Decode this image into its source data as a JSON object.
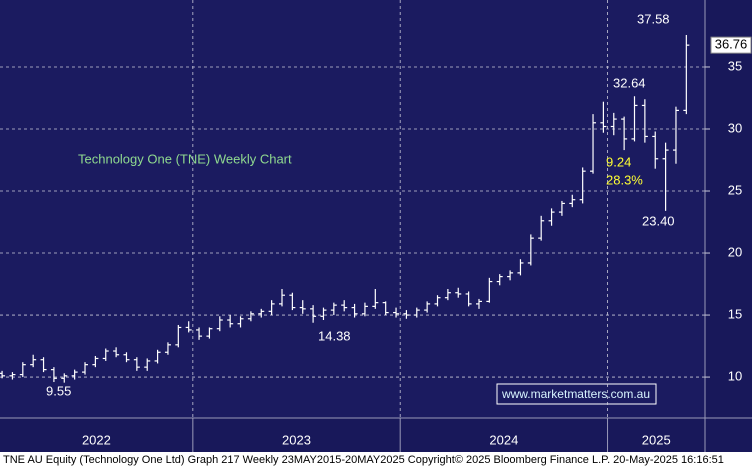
{
  "chart_data": {
    "type": "ohlc",
    "title": "Technology One (TNE) Weekly Chart",
    "title_color": "#8fd98f",
    "color": "#ffffff",
    "grid": true,
    "x": [
      2022.08,
      2022.13,
      2022.18,
      2022.23,
      2022.28,
      2022.33,
      2022.38,
      2022.43,
      2022.48,
      2022.53,
      2022.58,
      2022.63,
      2022.68,
      2022.73,
      2022.78,
      2022.83,
      2022.88,
      2022.93,
      2022.98,
      2023.03,
      2023.08,
      2023.13,
      2023.18,
      2023.23,
      2023.28,
      2023.33,
      2023.38,
      2023.43,
      2023.48,
      2023.53,
      2023.58,
      2023.63,
      2023.68,
      2023.73,
      2023.78,
      2023.83,
      2023.88,
      2023.93,
      2023.98,
      2024.03,
      2024.08,
      2024.13,
      2024.18,
      2024.23,
      2024.28,
      2024.33,
      2024.38,
      2024.43,
      2024.48,
      2024.53,
      2024.58,
      2024.63,
      2024.68,
      2024.73,
      2024.78,
      2024.83,
      2024.88,
      2024.93,
      2024.98,
      2025.03,
      2025.08,
      2025.13,
      2025.18,
      2025.23,
      2025.28,
      2025.33,
      2025.38
    ],
    "open": [
      10.3,
      10.1,
      10.2,
      11.0,
      11.4,
      10.6,
      9.9,
      10.1,
      10.4,
      11.0,
      11.5,
      12.1,
      11.8,
      11.4,
      10.8,
      11.3,
      12.0,
      12.6,
      14.0,
      13.8,
      13.3,
      13.9,
      14.6,
      14.3,
      14.7,
      15.1,
      15.3,
      15.9,
      16.6,
      15.6,
      15.5,
      14.9,
      15.4,
      15.8,
      15.6,
      15.1,
      15.7,
      16.0,
      15.2,
      15.1,
      15.0,
      15.4,
      15.9,
      16.4,
      16.8,
      16.7,
      15.9,
      16.1,
      17.7,
      18.1,
      18.4,
      19.2,
      21.2,
      22.6,
      23.3,
      24.0,
      24.3,
      26.6,
      30.5,
      30.2,
      30.8,
      29.2,
      31.9,
      29.4,
      27.6,
      28.3,
      31.5
    ],
    "high": [
      10.5,
      10.4,
      11.2,
      11.8,
      11.6,
      10.8,
      10.3,
      10.6,
      11.2,
      11.7,
      12.3,
      12.4,
      12.0,
      11.6,
      11.5,
      12.2,
      12.8,
      14.2,
      14.5,
      14.0,
      14.0,
      14.9,
      15.0,
      14.9,
      15.3,
      15.5,
      16.2,
      17.1,
      16.8,
      16.2,
      15.8,
      15.6,
      16.0,
      16.2,
      15.9,
      16.0,
      17.1,
      16.1,
      15.6,
      15.4,
      15.6,
      16.1,
      16.6,
      17.1,
      17.2,
      16.9,
      16.3,
      18.0,
      18.3,
      18.6,
      19.5,
      21.5,
      23.0,
      23.6,
      24.2,
      24.7,
      26.9,
      31.2,
      32.2,
      31.3,
      31.0,
      32.64,
      32.4,
      29.8,
      28.9,
      31.8,
      37.58
    ],
    "low": [
      9.9,
      9.8,
      10.0,
      10.8,
      10.4,
      9.6,
      9.55,
      9.8,
      10.2,
      10.8,
      11.3,
      11.6,
      11.2,
      10.5,
      10.5,
      11.1,
      11.8,
      12.4,
      13.6,
      13.0,
      13.1,
      13.7,
      14.0,
      14.0,
      14.5,
      14.8,
      15.0,
      15.7,
      15.4,
      15.1,
      14.38,
      14.6,
      15.0,
      15.3,
      14.8,
      14.9,
      15.5,
      15.0,
      14.8,
      14.7,
      14.8,
      15.2,
      15.7,
      16.2,
      16.4,
      15.7,
      15.5,
      16.0,
      17.4,
      17.8,
      18.2,
      19.0,
      21.0,
      22.2,
      23.0,
      23.7,
      24.0,
      26.4,
      29.7,
      29.5,
      28.3,
      29.0,
      28.9,
      26.8,
      23.4,
      27.2,
      31.2
    ],
    "close": [
      10.1,
      10.2,
      11.0,
      11.4,
      10.6,
      9.9,
      10.1,
      10.4,
      11.0,
      11.5,
      12.1,
      11.8,
      11.4,
      10.8,
      11.3,
      12.0,
      12.6,
      14.0,
      13.8,
      13.3,
      13.9,
      14.6,
      14.3,
      14.7,
      15.1,
      15.3,
      15.9,
      16.6,
      15.6,
      15.5,
      14.9,
      15.4,
      15.8,
      15.6,
      15.1,
      15.7,
      16.0,
      15.2,
      15.1,
      15.0,
      15.4,
      15.9,
      16.4,
      16.8,
      16.7,
      15.9,
      16.1,
      17.7,
      18.1,
      18.4,
      19.2,
      21.2,
      22.6,
      23.3,
      24.0,
      24.3,
      26.6,
      30.5,
      30.2,
      30.8,
      29.2,
      31.9,
      29.4,
      27.6,
      28.3,
      31.5,
      36.76
    ],
    "xlim": [
      2022.07,
      2025.47
    ],
    "xticks": [
      2023,
      2024,
      2025
    ],
    "year_labels": [
      2022,
      2023,
      2024,
      2025
    ],
    "ylim": [
      6.7,
      40.4
    ],
    "yticks": [
      10,
      15,
      20,
      25,
      30,
      35
    ],
    "annotations": [
      {
        "text": "37.58",
        "color": "#ffffff"
      },
      {
        "text": "32.64",
        "color": "#ffffff"
      },
      {
        "text": "9.24",
        "color": "#ffff33"
      },
      {
        "text": "28.3%",
        "color": "#ffff33"
      },
      {
        "text": "23.40",
        "color": "#ffffff"
      },
      {
        "text": "14.38",
        "color": "#ffffff"
      },
      {
        "text": "9.55",
        "color": "#ffffff"
      }
    ],
    "watermark": "www.marketmatters.com.au",
    "footer": "TNE AU Equity (Technology One Ltd) Graph 217  Weekly 23MAY2015-20MAY2025  Copyright© 2025 Bloomberg Finance L.P.  20-May-2025 16:16:51"
  }
}
